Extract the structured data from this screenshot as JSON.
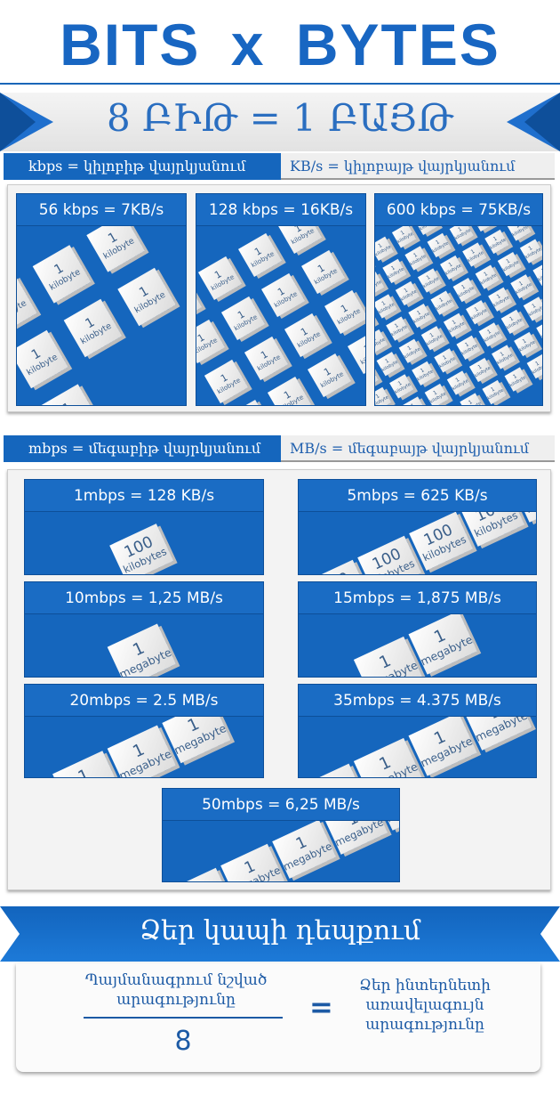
{
  "header": {
    "title": "BITS x BYTES"
  },
  "banner": {
    "title": "8 ԲԻԹ = 1 ԲԱՅԹ"
  },
  "kb_legend": {
    "left": "kbps = կիլոբիթ վայրկյանում",
    "right": "KB/s = կիլոբայթ վայրկյանում"
  },
  "kb_cards": [
    {
      "title": "56 kbps =  7KB/s",
      "tile_num": "1",
      "tile_unit": "kilobyte",
      "tiles": 7
    },
    {
      "title": "128 kbps =  16KB/s",
      "tile_num": "1",
      "tile_unit": "kilobyte",
      "tiles": 16
    },
    {
      "title": "600 kbps =  75KB/s",
      "tile_num": "1",
      "tile_unit": "kilobyte",
      "tiles": 75
    }
  ],
  "mb_legend": {
    "left": "mbps = մեգաբիթ վայրկյանում",
    "right": "MB/s = մեգաբայթ վայրկյանում"
  },
  "mb_cards": [
    {
      "title": "1mbps = 128 KB/s",
      "tile_num": "100",
      "tile_unit": "kilobytes",
      "tiles": 1
    },
    {
      "title": "5mbps = 625 KB/s",
      "tile_num": "100",
      "tile_unit": "kilobytes",
      "tiles": 6
    },
    {
      "title": "10mbps = 1,25 MB/s",
      "tile_num": "1",
      "tile_unit": "megabyte",
      "tiles": 1
    },
    {
      "title": "15mbps = 1,875 MB/s",
      "tile_num": "1",
      "tile_unit": "megabyte",
      "tiles": 2
    },
    {
      "title": "20mbps = 2.5 MB/s",
      "tile_num": "1",
      "tile_unit": "megabyte",
      "tiles": 3
    },
    {
      "title": "35mbps = 4.375 MB/s",
      "tile_num": "1",
      "tile_unit": "megabyte",
      "tiles": 4
    },
    {
      "title": "50mbps = 6,25 MB/s",
      "tile_num": "1",
      "tile_unit": "megabyte",
      "tiles": 6
    }
  ],
  "footer": {
    "title": "Ձեր կապի դեպքում",
    "numerator": "Պայմանագրում նշված արագությունը",
    "denominator": "8",
    "equals": "=",
    "result": "Ձեր ինտերնետի առավելագույն արագությունը"
  },
  "colors": {
    "primary": "#1566bd",
    "dark": "#0d4f99",
    "light": "#f3f3f3"
  }
}
